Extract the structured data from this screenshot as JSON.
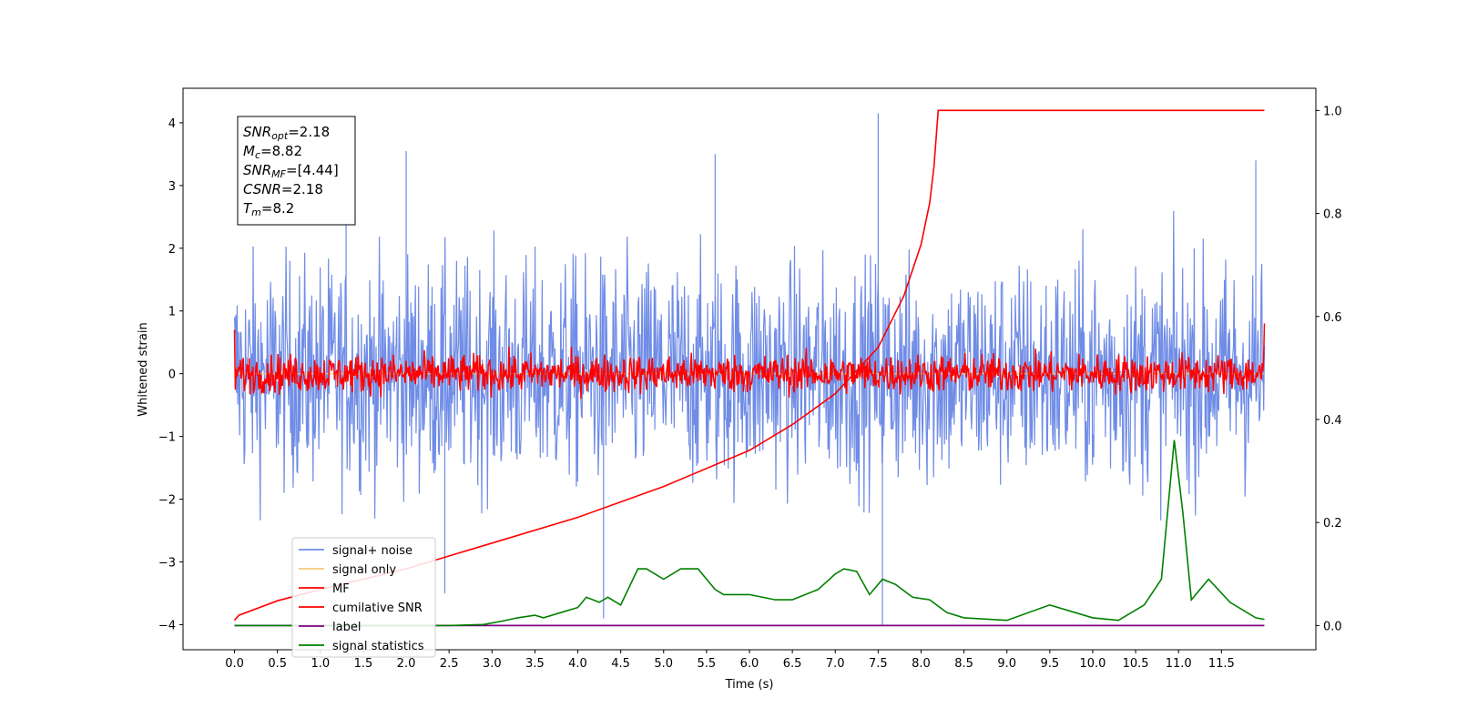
{
  "chart_data": {
    "type": "line",
    "xlabel": "Time (s)",
    "ylabel": "Whitened strain",
    "xlim": [
      -0.6,
      12.6
    ],
    "ylim": [
      -4.4,
      4.55
    ],
    "y2lim": [
      -0.047,
      1.043
    ],
    "x_ticks": [
      "0.0",
      "0.5",
      "1.0",
      "1.5",
      "2.0",
      "2.5",
      "3.0",
      "3.5",
      "4.0",
      "4.5",
      "5.0",
      "5.5",
      "6.0",
      "6.5",
      "7.0",
      "7.5",
      "8.0",
      "8.5",
      "9.0",
      "9.5",
      "10.0",
      "10.5",
      "11.0",
      "11.5"
    ],
    "y_ticks": [
      "4",
      "3",
      "2",
      "1",
      "0",
      "−1",
      "−2",
      "−3",
      "−4"
    ],
    "y2_ticks": [
      "1.0",
      "0.8",
      "0.6",
      "0.4",
      "0.2",
      "0.0"
    ],
    "duration": 12.0,
    "grid": false,
    "legend_position": "lower-left",
    "series": [
      {
        "name": "signal+ noise",
        "color": "#6f8ce6",
        "axis": "left",
        "noise_std": 1.0,
        "spikes": [
          [
            1.3,
            2.8
          ],
          [
            2.0,
            3.55
          ],
          [
            4.3,
            -3.9
          ],
          [
            5.6,
            3.5
          ],
          [
            7.5,
            4.15
          ],
          [
            7.55,
            -4.0
          ],
          [
            11.9,
            3.4
          ],
          [
            2.45,
            -3.5
          ]
        ]
      },
      {
        "name": "signal only",
        "color": "#f5c878",
        "axis": "left",
        "values": [
          0
        ]
      },
      {
        "name": "MF",
        "color": "#ff0000",
        "axis": "left",
        "noise_std": 0.28,
        "start": 0.7,
        "end": 0.8
      },
      {
        "name": "cumilative SNR",
        "color": "#ff0000",
        "axis": "right",
        "x": [
          0.0,
          0.05,
          0.5,
          1.0,
          2.0,
          3.0,
          4.0,
          5.0,
          6.0,
          6.5,
          7.0,
          7.5,
          7.8,
          8.0,
          8.1,
          8.15,
          8.2,
          12.0
        ],
        "values": [
          0.01,
          0.02,
          0.048,
          0.07,
          0.11,
          0.16,
          0.21,
          0.27,
          0.34,
          0.39,
          0.45,
          0.54,
          0.64,
          0.74,
          0.82,
          0.89,
          1.0,
          1.0
        ]
      },
      {
        "name": "label",
        "color": "#800080",
        "axis": "right",
        "values": [
          0.0
        ]
      },
      {
        "name": "signal statistics",
        "color": "#008000",
        "axis": "right",
        "x": [
          0.0,
          0.5,
          1.0,
          1.5,
          2.0,
          2.5,
          2.9,
          3.1,
          3.3,
          3.5,
          3.6,
          3.8,
          4.0,
          4.1,
          4.25,
          4.35,
          4.5,
          4.7,
          4.8,
          5.0,
          5.2,
          5.4,
          5.6,
          5.7,
          6.0,
          6.3,
          6.5,
          6.8,
          7.0,
          7.1,
          7.25,
          7.4,
          7.55,
          7.7,
          7.9,
          8.1,
          8.3,
          8.5,
          9.0,
          9.5,
          10.0,
          10.3,
          10.6,
          10.8,
          10.95,
          11.05,
          11.15,
          11.35,
          11.6,
          11.9,
          12.0
        ],
        "values": [
          0.0,
          0.0,
          0.0,
          0.0,
          0.0,
          0.0,
          0.002,
          0.008,
          0.015,
          0.02,
          0.015,
          0.025,
          0.035,
          0.055,
          0.045,
          0.055,
          0.04,
          0.11,
          0.11,
          0.09,
          0.11,
          0.11,
          0.07,
          0.06,
          0.06,
          0.05,
          0.05,
          0.07,
          0.1,
          0.11,
          0.105,
          0.06,
          0.09,
          0.08,
          0.055,
          0.05,
          0.025,
          0.015,
          0.01,
          0.04,
          0.015,
          0.01,
          0.04,
          0.09,
          0.36,
          0.22,
          0.05,
          0.09,
          0.045,
          0.015,
          0.012
        ]
      }
    ],
    "annotation_lines": [
      {
        "label": "SNR",
        "sub": "opt",
        "value": "=2.18"
      },
      {
        "label": "M",
        "sub": "c",
        "value": "=8.82"
      },
      {
        "label": "SNR",
        "sub": "MF",
        "value": "=[4.44]"
      },
      {
        "label": "CSNR",
        "sub": "",
        "value": "=2.18"
      },
      {
        "label": "T",
        "sub": "m",
        "value": "=8.2"
      }
    ]
  }
}
